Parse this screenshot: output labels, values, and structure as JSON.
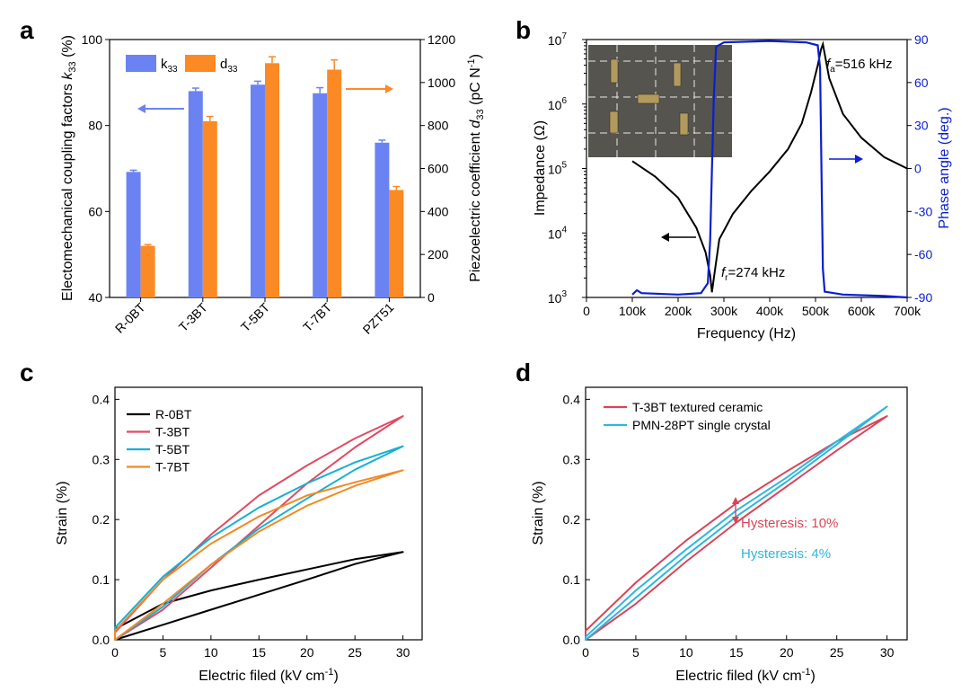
{
  "panels": {
    "a": "a",
    "b": "b",
    "c": "c",
    "d": "d"
  },
  "chart_data": [
    {
      "type": "bar",
      "panel": "a",
      "categories": [
        "R-0BT",
        "T-3BT",
        "T-5BT",
        "T-7BT",
        "PZT51"
      ],
      "series": [
        {
          "name": "k33",
          "axis": "left",
          "color": "#6b83f2",
          "values": [
            69.2,
            88.0,
            89.5,
            87.5,
            76.0
          ],
          "errors": [
            0.4,
            0.7,
            0.8,
            1.3,
            0.6
          ]
        },
        {
          "name": "d33",
          "axis": "right",
          "color": "#fb8a25",
          "values": [
            240,
            820,
            1090,
            1060,
            500
          ],
          "errors": [
            6,
            22,
            30,
            45,
            16
          ]
        }
      ],
      "legend_k33": "k",
      "legend_k33_sub": "33",
      "legend_d33": "d",
      "legend_d33_sub": "33",
      "ylabel_left": "Electomechanical coupling factors ",
      "ylabel_left_k": "k",
      "ylabel_left_sub": "33",
      "ylabel_left_unit": " (%)",
      "ylabel_right": "Piezoelectric coefficient ",
      "ylabel_right_d": "d",
      "ylabel_right_sub": "33",
      "ylabel_right_unit": " (pC N",
      "ylabel_right_sup": "-1",
      "ylabel_right_close": ")",
      "ylim_left": [
        40,
        100
      ],
      "ylim_right": [
        0,
        1200
      ],
      "yticks_left": [
        "40",
        "60",
        "80",
        "100"
      ],
      "yticks_right": [
        "0",
        "200",
        "400",
        "600",
        "800",
        "1000",
        "1200"
      ],
      "grid": false
    },
    {
      "type": "line",
      "panel": "b",
      "xlabel": "Frequency (Hz)",
      "ylabel_left": "Impedance (Ω)",
      "ylabel_right": "Phase angle (deg.)",
      "xlim": [
        0,
        700000
      ],
      "ylim_left_log": [
        1000,
        10000000
      ],
      "ylim_right": [
        -90,
        90
      ],
      "xticks": [
        "0",
        "100k",
        "200k",
        "300k",
        "400k",
        "500k",
        "600k",
        "700k"
      ],
      "yticks_left_base": "10",
      "yticks_left_exp": [
        "3",
        "4",
        "5",
        "6",
        "7"
      ],
      "yticks_right": [
        "-90",
        "-60",
        "-30",
        "0",
        "30",
        "60",
        "90"
      ],
      "series": [
        {
          "name": "Impedance",
          "axis": "left",
          "color": "#000000",
          "points": [
            [
              100000,
              130000
            ],
            [
              150000,
              75000
            ],
            [
              200000,
              35000
            ],
            [
              240000,
              12000
            ],
            [
              260000,
              5000
            ],
            [
              270000,
              2200
            ],
            [
              274000,
              1200
            ],
            [
              278000,
              2000
            ],
            [
              290000,
              8000
            ],
            [
              320000,
              20000
            ],
            [
              360000,
              45000
            ],
            [
              400000,
              90000
            ],
            [
              440000,
              200000
            ],
            [
              470000,
              500000
            ],
            [
              490000,
              1500000
            ],
            [
              505000,
              4000000
            ],
            [
              512000,
              7000000
            ],
            [
              516000,
              8500000
            ],
            [
              520000,
              6000000
            ],
            [
              530000,
              2500000
            ],
            [
              560000,
              700000
            ],
            [
              600000,
              300000
            ],
            [
              650000,
              150000
            ],
            [
              700000,
              100000
            ]
          ]
        },
        {
          "name": "Phase angle",
          "axis": "right",
          "color": "#0b1fd0",
          "points": [
            [
              100000,
              -88
            ],
            [
              110000,
              -85
            ],
            [
              120000,
              -87
            ],
            [
              200000,
              -88
            ],
            [
              250000,
              -87
            ],
            [
              265000,
              -80
            ],
            [
              270000,
              -50
            ],
            [
              274000,
              0
            ],
            [
              278000,
              50
            ],
            [
              283000,
              85
            ],
            [
              300000,
              88
            ],
            [
              400000,
              89
            ],
            [
              480000,
              88
            ],
            [
              505000,
              86
            ],
            [
              510000,
              70
            ],
            [
              513000,
              0
            ],
            [
              516000,
              -70
            ],
            [
              520000,
              -86
            ],
            [
              560000,
              -88
            ],
            [
              650000,
              -89
            ],
            [
              700000,
              -90
            ]
          ]
        }
      ],
      "ann_fa_f": "f",
      "ann_fa_sub": "a",
      "ann_fa_val": "=516 kHz",
      "ann_fr_f": "f",
      "ann_fr_sub": "r",
      "ann_fr_val": "=274 kHz",
      "grid": false
    },
    {
      "type": "line",
      "panel": "c",
      "xlabel": "Electric filed (kV cm",
      "xlabel_sup": "-1",
      "xlabel_close": ")",
      "ylabel": "Strain (%)",
      "xlim": [
        0,
        32
      ],
      "ylim": [
        0,
        0.42
      ],
      "xticks": [
        "0",
        "5",
        "10",
        "15",
        "20",
        "25",
        "30"
      ],
      "yticks": [
        "0.0",
        "0.1",
        "0.2",
        "0.3",
        "0.4"
      ],
      "legend_position": "top-left",
      "series": [
        {
          "name": "R-0BT",
          "color": "#000000",
          "upper": [
            [
              0,
              0.018
            ],
            [
              5,
              0.06
            ],
            [
              10,
              0.082
            ],
            [
              15,
              0.1
            ],
            [
              20,
              0.117
            ],
            [
              25,
              0.134
            ],
            [
              30,
              0.146
            ]
          ],
          "lower": [
            [
              0,
              0.0
            ],
            [
              5,
              0.025
            ],
            [
              10,
              0.05
            ],
            [
              15,
              0.075
            ],
            [
              20,
              0.1
            ],
            [
              25,
              0.126
            ],
            [
              30,
              0.146
            ]
          ]
        },
        {
          "name": "T-3BT",
          "color": "#e04a63",
          "upper": [
            [
              0,
              0.012
            ],
            [
              5,
              0.1
            ],
            [
              10,
              0.175
            ],
            [
              15,
              0.24
            ],
            [
              20,
              0.29
            ],
            [
              25,
              0.335
            ],
            [
              30,
              0.372
            ]
          ],
          "lower": [
            [
              0,
              0.0
            ],
            [
              5,
              0.05
            ],
            [
              10,
              0.12
            ],
            [
              15,
              0.19
            ],
            [
              20,
              0.26
            ],
            [
              25,
              0.32
            ],
            [
              30,
              0.372
            ]
          ]
        },
        {
          "name": "T-5BT",
          "color": "#16b0d3",
          "upper": [
            [
              0,
              0.02
            ],
            [
              5,
              0.105
            ],
            [
              10,
              0.17
            ],
            [
              15,
              0.22
            ],
            [
              20,
              0.26
            ],
            [
              25,
              0.295
            ],
            [
              30,
              0.322
            ]
          ],
          "lower": [
            [
              0,
              0.0
            ],
            [
              5,
              0.055
            ],
            [
              10,
              0.125
            ],
            [
              15,
              0.185
            ],
            [
              20,
              0.235
            ],
            [
              25,
              0.283
            ],
            [
              30,
              0.322
            ]
          ]
        },
        {
          "name": "T-7BT",
          "color": "#f18a25",
          "upper": [
            [
              0,
              0.015
            ],
            [
              5,
              0.1
            ],
            [
              10,
              0.16
            ],
            [
              15,
              0.205
            ],
            [
              20,
              0.24
            ],
            [
              25,
              0.262
            ],
            [
              30,
              0.282
            ]
          ],
          "lower": [
            [
              0,
              0.0
            ],
            [
              5,
              0.06
            ],
            [
              10,
              0.125
            ],
            [
              15,
              0.18
            ],
            [
              20,
              0.223
            ],
            [
              25,
              0.256
            ],
            [
              30,
              0.282
            ]
          ]
        }
      ],
      "grid": false
    },
    {
      "type": "line",
      "panel": "d",
      "xlabel": "Electric filed (kV cm",
      "xlabel_sup": "-1",
      "xlabel_close": ")",
      "ylabel": "Strain (%)",
      "xlim": [
        0,
        32
      ],
      "ylim": [
        0,
        0.42
      ],
      "xticks": [
        "0",
        "5",
        "10",
        "15",
        "20",
        "25",
        "30"
      ],
      "yticks": [
        "0.0",
        "0.1",
        "0.2",
        "0.3",
        "0.4"
      ],
      "legend_position": "top-left",
      "series": [
        {
          "name": "T-3BT textured ceramic",
          "color": "#d94459",
          "upper": [
            [
              0,
              0.015
            ],
            [
              5,
              0.095
            ],
            [
              10,
              0.165
            ],
            [
              15,
              0.227
            ],
            [
              20,
              0.28
            ],
            [
              25,
              0.33
            ],
            [
              30,
              0.372
            ]
          ],
          "lower": [
            [
              0,
              0.0
            ],
            [
              5,
              0.06
            ],
            [
              10,
              0.13
            ],
            [
              15,
              0.195
            ],
            [
              20,
              0.255
            ],
            [
              25,
              0.315
            ],
            [
              30,
              0.372
            ]
          ]
        },
        {
          "name": "PMN-28PT single crystal",
          "color": "#2fb6dd",
          "upper": [
            [
              0,
              0.005
            ],
            [
              5,
              0.082
            ],
            [
              10,
              0.15
            ],
            [
              15,
              0.215
            ],
            [
              20,
              0.27
            ],
            [
              25,
              0.33
            ],
            [
              30,
              0.388
            ]
          ],
          "lower": [
            [
              0,
              0.0
            ],
            [
              5,
              0.07
            ],
            [
              10,
              0.14
            ],
            [
              15,
              0.205
            ],
            [
              20,
              0.263
            ],
            [
              25,
              0.325
            ],
            [
              30,
              0.388
            ]
          ]
        }
      ],
      "annotations": [
        {
          "text": "Hysteresis: 10%",
          "color": "#d94459"
        },
        {
          "text": "Hysteresis: 4%",
          "color": "#2fb6dd"
        }
      ],
      "grid": false
    }
  ]
}
